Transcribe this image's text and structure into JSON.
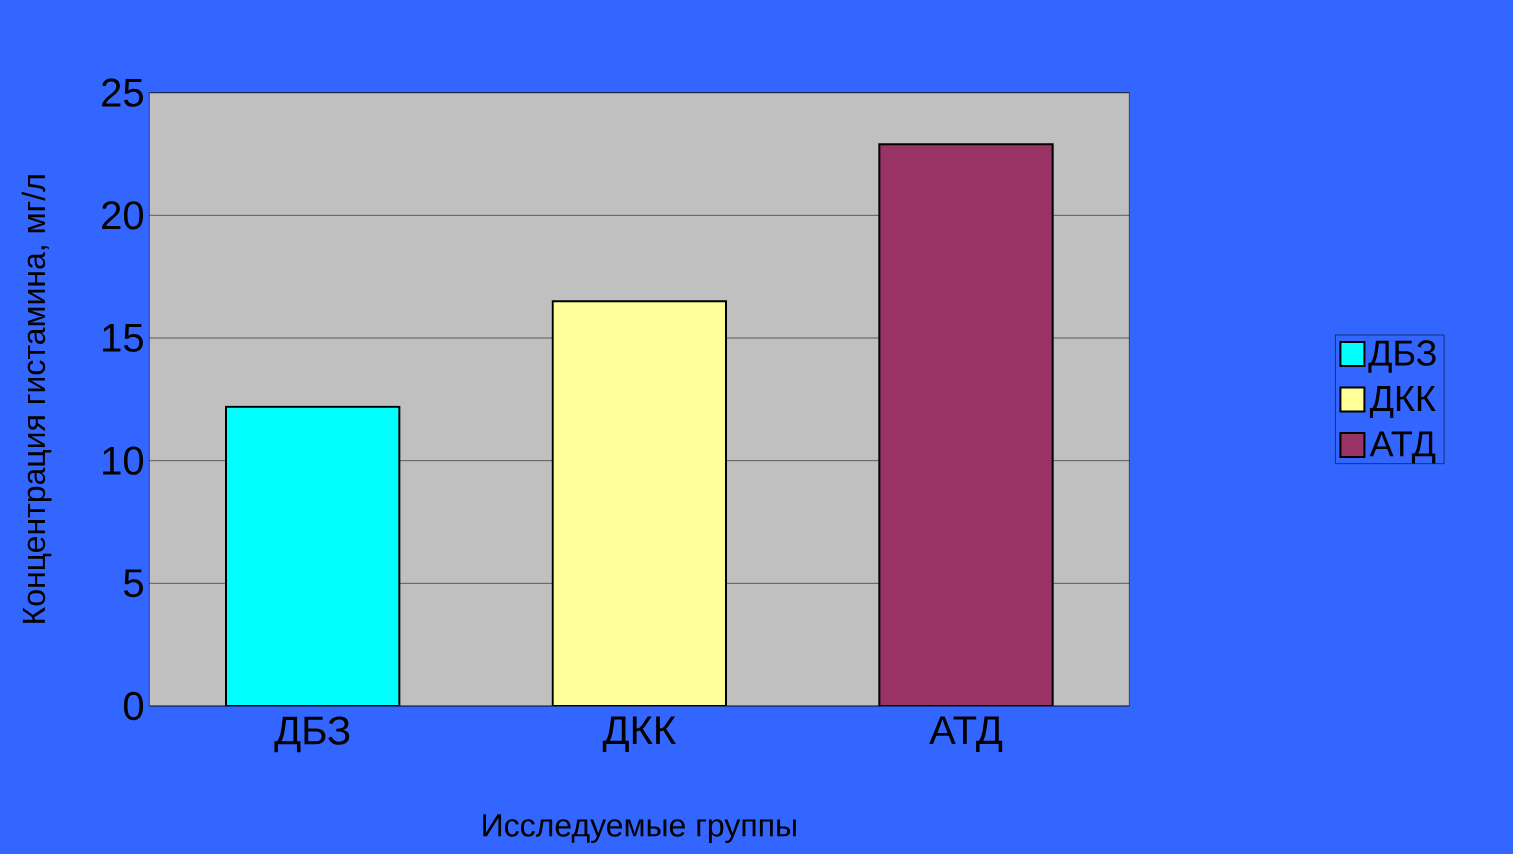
{
  "chart_data": {
    "type": "bar",
    "xlabel": "Исследуемые группы",
    "ylabel": "Концентрация гистамина, мг/л",
    "categories": [
      "ДБЗ",
      "ДКК",
      "АТД"
    ],
    "series": [
      {
        "name": "ДБЗ",
        "color": "#00ffff",
        "values": [
          12.2,
          null,
          null
        ]
      },
      {
        "name": "ДКК",
        "color": "#ffff99",
        "values": [
          null,
          16.5,
          null
        ]
      },
      {
        "name": "АТД",
        "color": "#993366",
        "values": [
          null,
          null,
          22.9
        ]
      }
    ],
    "ylim": [
      0,
      25
    ],
    "yticks": [
      0,
      5,
      10,
      15,
      20,
      25
    ],
    "grid": "y",
    "legend": "right"
  }
}
